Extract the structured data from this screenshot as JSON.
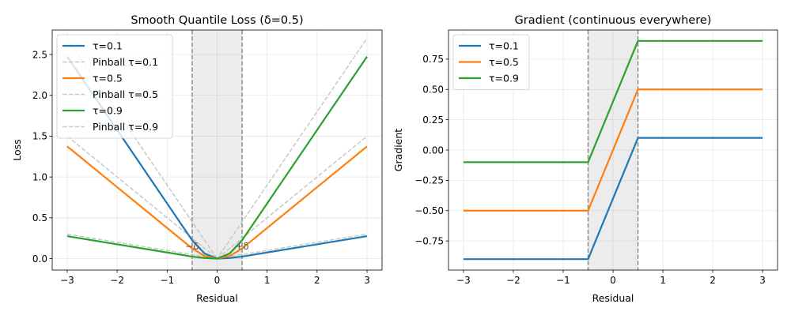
{
  "chart_data": [
    {
      "type": "line",
      "title": "Smooth Quantile Loss (δ=0.5)",
      "xlabel": "Residual",
      "ylabel": "Loss",
      "xlim": [
        -3.3,
        3.3
      ],
      "ylim": [
        -0.14,
        2.8
      ],
      "xticks": [
        -3,
        -2,
        -1,
        0,
        1,
        2,
        3
      ],
      "xtick_labels": [
        "−3",
        "−2",
        "−1",
        "0",
        "1",
        "2",
        "3"
      ],
      "yticks": [
        0.0,
        0.5,
        1.0,
        1.5,
        2.0,
        2.5
      ],
      "ytick_labels": [
        "0.0",
        "0.5",
        "1.0",
        "1.5",
        "2.0",
        "2.5"
      ],
      "grid": true,
      "legend": "upper-left",
      "shaded_region": [
        -0.5,
        0.5
      ],
      "vlines": [
        -0.5,
        0.5
      ],
      "annotations": [
        {
          "text": "−δ",
          "x": -0.5,
          "y": 0.15
        },
        {
          "text": "+δ",
          "x": 0.5,
          "y": 0.15
        }
      ],
      "series": [
        {
          "name": "τ=0.1",
          "color": "#1f77b4",
          "style": "solid",
          "x": [
            -3,
            -2,
            -1,
            -0.75,
            -0.5,
            -0.25,
            0,
            0.25,
            0.5,
            1,
            2,
            3
          ],
          "y": [
            2.475,
            1.575,
            0.675,
            0.45,
            0.225,
            0.0625,
            0,
            0.0069,
            0.025,
            0.075,
            0.175,
            0.275
          ]
        },
        {
          "name": "Pinball τ=0.1",
          "color": "#c8c8c8",
          "style": "dashed",
          "x": [
            -3,
            0,
            3
          ],
          "y": [
            2.7,
            0,
            0.3
          ]
        },
        {
          "name": "τ=0.5",
          "color": "#ff7f0e",
          "style": "solid",
          "x": [
            -3,
            -2,
            -1,
            -0.5,
            -0.25,
            0,
            0.25,
            0.5,
            1,
            2,
            3
          ],
          "y": [
            1.375,
            0.875,
            0.375,
            0.125,
            0.03125,
            0,
            0.03125,
            0.125,
            0.375,
            0.875,
            1.375
          ]
        },
        {
          "name": "Pinball τ=0.5",
          "color": "#c8c8c8",
          "style": "dashed",
          "x": [
            -3,
            0,
            3
          ],
          "y": [
            1.5,
            0,
            1.5
          ]
        },
        {
          "name": "τ=0.9",
          "color": "#2ca02c",
          "style": "solid",
          "x": [
            -3,
            -2,
            -1,
            -0.5,
            -0.25,
            0,
            0.25,
            0.5,
            0.75,
            1,
            2,
            3
          ],
          "y": [
            0.275,
            0.175,
            0.075,
            0.025,
            0.0069,
            0,
            0.0625,
            0.225,
            0.45,
            0.675,
            1.575,
            2.475
          ]
        },
        {
          "name": "Pinball τ=0.9",
          "color": "#c8c8c8",
          "style": "dashed",
          "x": [
            -3,
            0,
            3
          ],
          "y": [
            0.3,
            0,
            2.7
          ]
        }
      ]
    },
    {
      "type": "line",
      "title": "Gradient (continuous everywhere)",
      "xlabel": "Residual",
      "ylabel": "Gradient",
      "xlim": [
        -3.3,
        3.3
      ],
      "ylim": [
        -0.99,
        0.99
      ],
      "xticks": [
        -3,
        -2,
        -1,
        0,
        1,
        2,
        3
      ],
      "xtick_labels": [
        "−3",
        "−2",
        "−1",
        "0",
        "1",
        "2",
        "3"
      ],
      "yticks": [
        -0.75,
        -0.5,
        -0.25,
        0.0,
        0.25,
        0.5,
        0.75
      ],
      "ytick_labels": [
        "−0.75",
        "−0.50",
        "−0.25",
        "0.00",
        "0.25",
        "0.50",
        "0.75"
      ],
      "grid": true,
      "legend": "upper-left",
      "shaded_region": [
        -0.5,
        0.5
      ],
      "vlines": [
        -0.5,
        0.5
      ],
      "series": [
        {
          "name": "τ=0.1",
          "color": "#1f77b4",
          "style": "solid",
          "x": [
            -3,
            -0.5,
            0.5,
            3
          ],
          "y": [
            -0.9,
            -0.9,
            0.1,
            0.1
          ]
        },
        {
          "name": "τ=0.5",
          "color": "#ff7f0e",
          "style": "solid",
          "x": [
            -3,
            -0.5,
            0.5,
            3
          ],
          "y": [
            -0.5,
            -0.5,
            0.5,
            0.5
          ]
        },
        {
          "name": "τ=0.9",
          "color": "#2ca02c",
          "style": "solid",
          "x": [
            -3,
            -0.5,
            0.5,
            3
          ],
          "y": [
            -0.1,
            -0.1,
            0.9,
            0.9
          ]
        }
      ]
    }
  ]
}
